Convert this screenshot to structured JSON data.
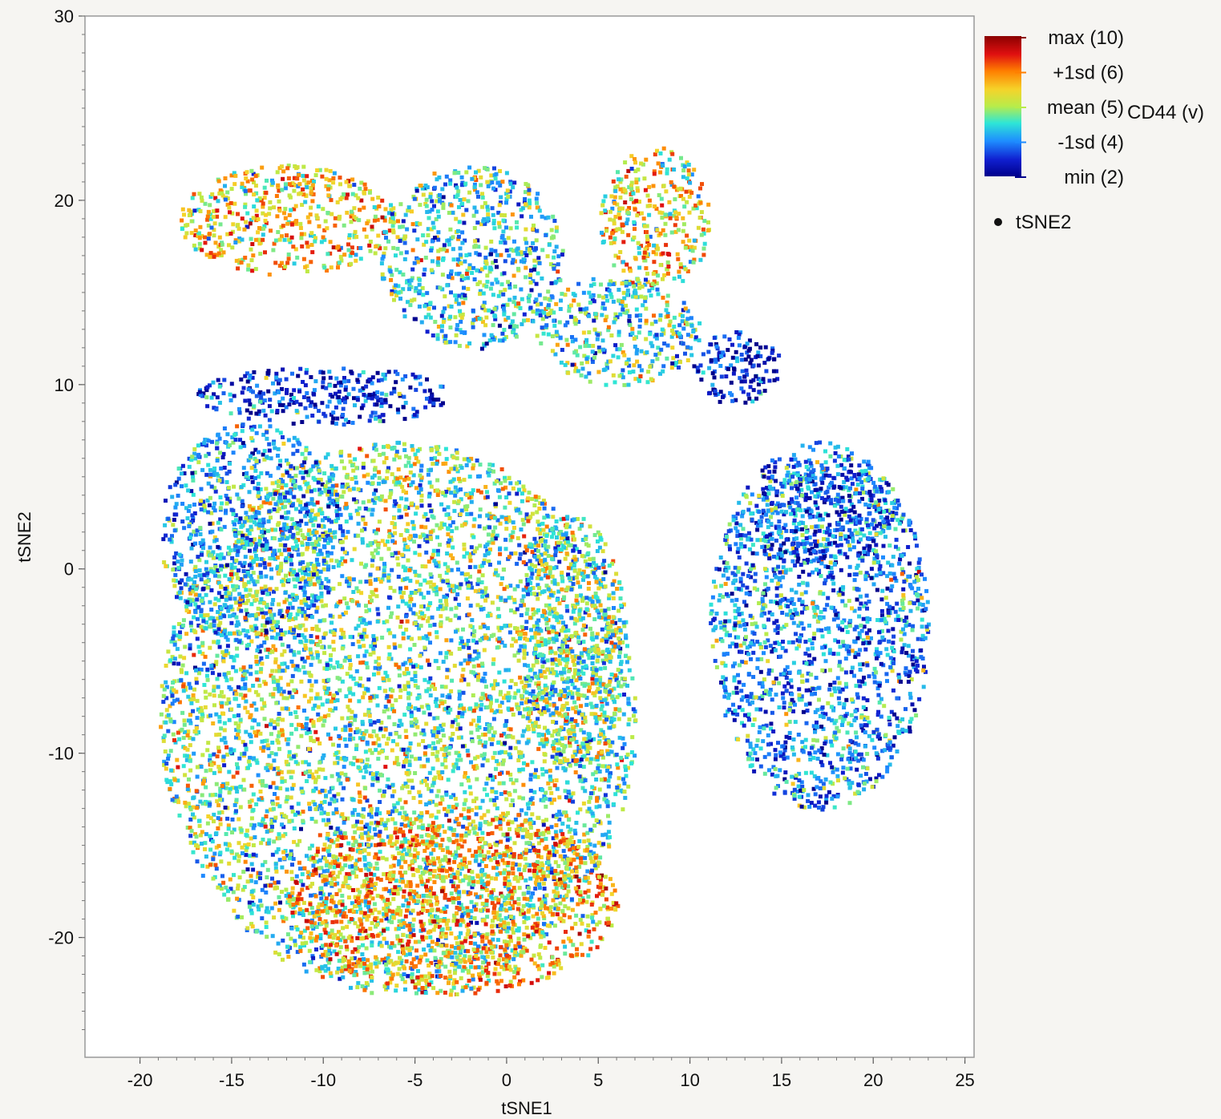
{
  "chart_data": {
    "type": "scatter",
    "title": "",
    "xlabel": "tSNE1",
    "ylabel": "tSNE2",
    "xlim": [
      -23,
      25.5
    ],
    "ylim": [
      -26.5,
      30
    ],
    "x_ticks": [
      -20,
      -15,
      -10,
      -5,
      0,
      5,
      10,
      15,
      20,
      25
    ],
    "y_ticks": [
      -20,
      -10,
      0,
      10,
      20,
      30
    ],
    "x_tick_labels": [
      "-20",
      "-15",
      "-10",
      "-5",
      "0",
      "5",
      "10",
      "15",
      "20",
      "25"
    ],
    "y_tick_labels": [
      "-20",
      "-10",
      "0",
      "10",
      "20",
      "30"
    ],
    "grid": false,
    "color_variable": "CD44 (v)",
    "color_scale": {
      "stops": [
        {
          "label": "max (10)",
          "value": 10,
          "color": "#8b0000"
        },
        {
          "label": "+1sd (6)",
          "value": 6,
          "color": "#ff7f00"
        },
        {
          "label": "mean (5)",
          "value": 5,
          "color": "#b8ec4a"
        },
        {
          "label": "-1sd (4)",
          "value": 4,
          "color": "#1e8cff"
        },
        {
          "label": "min (2)",
          "value": 2,
          "color": "#00008b"
        }
      ]
    },
    "legend": {
      "placement": "right",
      "marker_label": "tSNE2"
    },
    "clusters": [
      {
        "cx": -6,
        "cy": -8,
        "rx": 13,
        "ry": 15,
        "mean_value": 5.2
      },
      {
        "cx": -3,
        "cy": -18,
        "rx": 9,
        "ry": 5,
        "mean_value": 6.6
      },
      {
        "cx": -14,
        "cy": 2,
        "rx": 5,
        "ry": 6,
        "mean_value": 4.3
      },
      {
        "cx": -12,
        "cy": 19,
        "rx": 6,
        "ry": 3,
        "mean_value": 6.3
      },
      {
        "cx": -2,
        "cy": 17,
        "rx": 5,
        "ry": 5,
        "mean_value": 4.7
      },
      {
        "cx": 8,
        "cy": 19,
        "rx": 3,
        "ry": 4,
        "mean_value": 6.2
      },
      {
        "cx": -10,
        "cy": 9.5,
        "rx": 7,
        "ry": 1.6,
        "mean_value": 3.0
      },
      {
        "cx": 12.5,
        "cy": 11,
        "rx": 2.5,
        "ry": 2,
        "mean_value": 2.8
      },
      {
        "cx": 6,
        "cy": 13,
        "rx": 4.5,
        "ry": 3,
        "mean_value": 4.9
      },
      {
        "cx": 17,
        "cy": -3,
        "rx": 6,
        "ry": 10,
        "mean_value": 4.0
      },
      {
        "cx": 17,
        "cy": 3,
        "rx": 4,
        "ry": 3,
        "mean_value": 3.5
      },
      {
        "cx": 3.5,
        "cy": -4,
        "rx": 3,
        "ry": 7,
        "mean_value": 5.3
      }
    ]
  }
}
